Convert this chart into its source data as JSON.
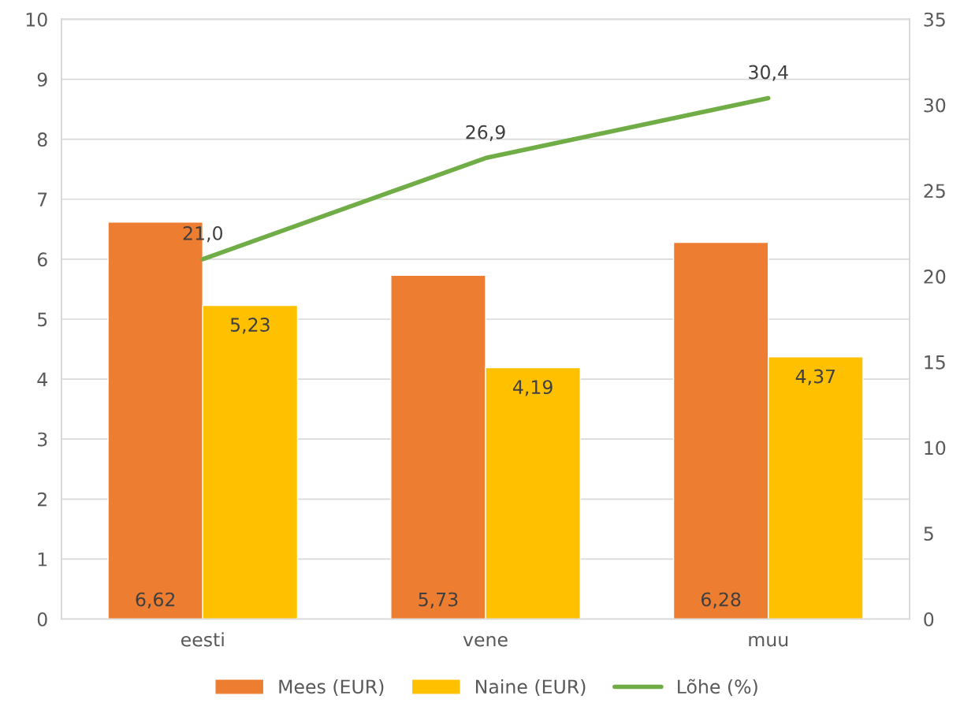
{
  "chart_data": {
    "type": "bar",
    "categories": [
      "eesti",
      "vene",
      "muu"
    ],
    "series": [
      {
        "name": "Mees (EUR)",
        "color": "#ed7d31",
        "values": [
          6.62,
          5.73,
          6.28
        ],
        "value_labels": [
          "6,62",
          "5,73",
          "6,28"
        ]
      },
      {
        "name": "Naine (EUR)",
        "color": "#ffc000",
        "values": [
          5.23,
          4.19,
          4.37
        ],
        "value_labels": [
          "5,23",
          "4,19",
          "4,37"
        ]
      },
      {
        "name": "Lõhe (%)",
        "type": "line",
        "axis": "y2",
        "color": "#70ad47",
        "values": [
          21.0,
          26.9,
          30.4
        ],
        "value_labels": [
          "21,0",
          "26,9",
          "30,4"
        ],
        "marker": "none",
        "line_style": "solid"
      }
    ],
    "ylim": [
      0,
      10
    ],
    "yticks": [
      0,
      1,
      2,
      3,
      4,
      5,
      6,
      7,
      8,
      9,
      10
    ],
    "y2lim": [
      0,
      35
    ],
    "y2ticks": [
      0,
      5,
      10,
      15,
      20,
      25,
      30,
      35
    ],
    "grid": "y",
    "legend": "bottom"
  }
}
